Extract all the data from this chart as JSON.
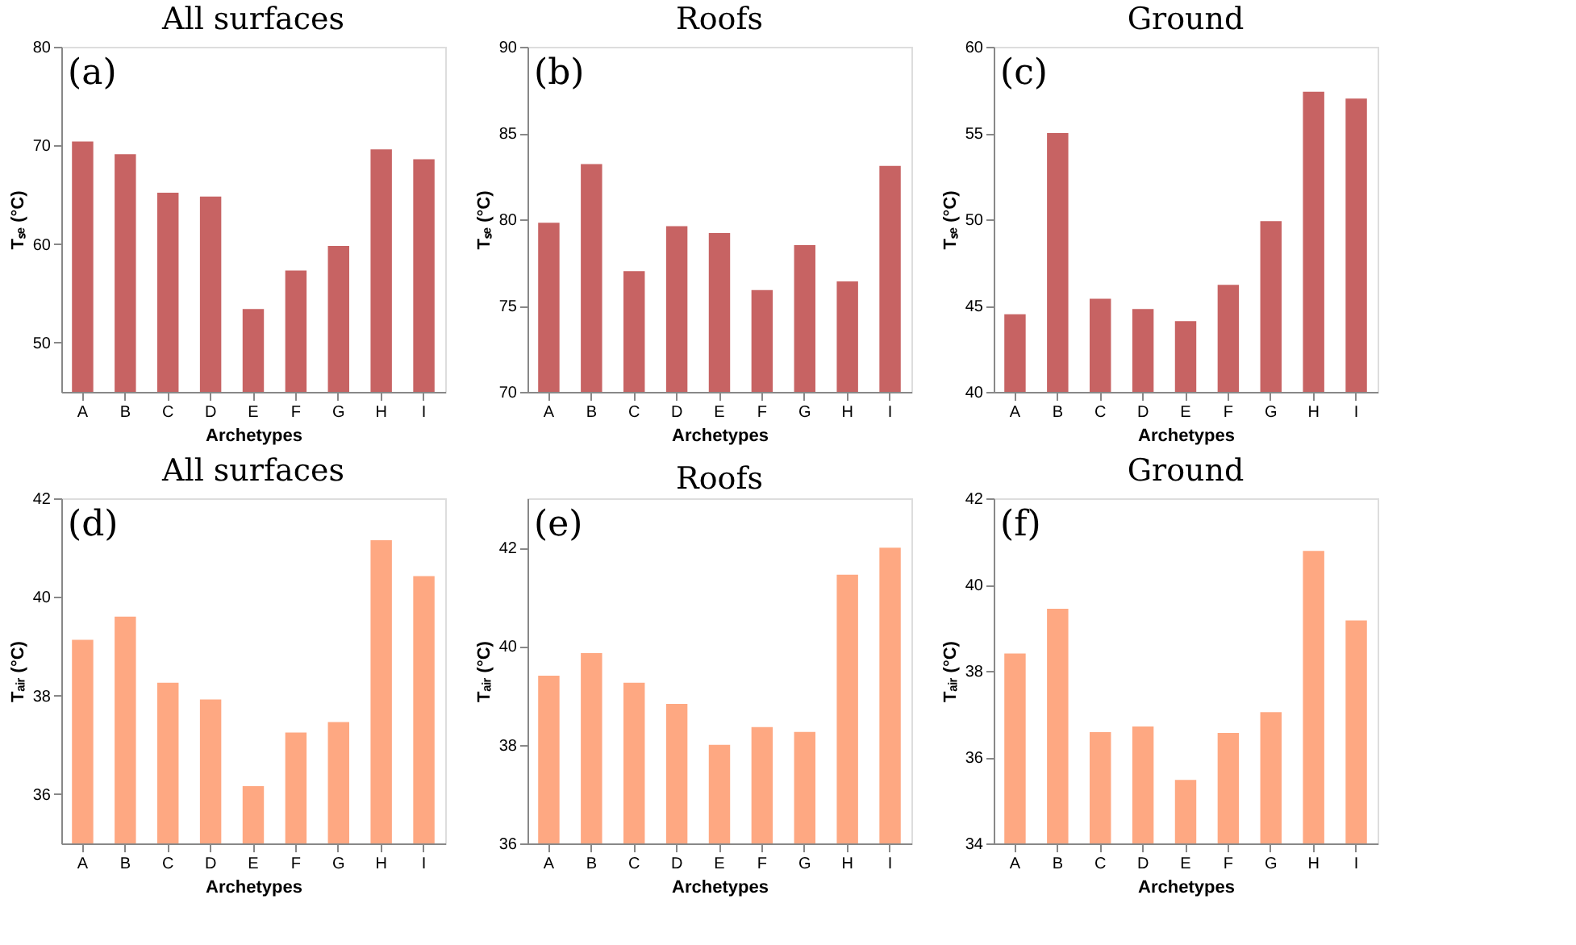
{
  "chart_data": [
    {
      "type": "bar",
      "title": "All surfaces",
      "xlabel": "Archetypes",
      "ylabel": "Tₛₑ (°C)",
      "annotations": [
        "(a)"
      ],
      "categories": [
        "A",
        "B",
        "C",
        "D",
        "E",
        "F",
        "G",
        "H",
        "I"
      ],
      "values": [
        70.4,
        69.1,
        65.2,
        64.8,
        53.4,
        57.3,
        59.8,
        69.6,
        68.6
      ],
      "color": "#c76363",
      "ylim": [
        45,
        80
      ],
      "yticks": [
        50,
        60,
        70,
        80
      ],
      "grid": false
    },
    {
      "type": "bar",
      "title": "Roofs",
      "xlabel": "Archetypes",
      "ylabel": "Tₛₑ (°C)",
      "annotations": [
        "(b)"
      ],
      "categories": [
        "A",
        "B",
        "C",
        "D",
        "E",
        "F",
        "G",
        "H",
        "I"
      ],
      "values": [
        79.8,
        83.2,
        77.0,
        79.6,
        79.2,
        75.9,
        78.5,
        76.4,
        83.1
      ],
      "color": "#c76363",
      "ylim": [
        70,
        90
      ],
      "yticks": [
        70,
        75,
        80,
        85,
        90
      ],
      "grid": false
    },
    {
      "type": "bar",
      "title": "Ground",
      "xlabel": "Archetypes",
      "ylabel": "Tₛₑ (°C)",
      "annotations": [
        "(c)"
      ],
      "categories": [
        "A",
        "B",
        "C",
        "D",
        "E",
        "F",
        "G",
        "H",
        "I"
      ],
      "values": [
        44.5,
        55.0,
        45.4,
        44.8,
        44.1,
        46.2,
        49.9,
        57.4,
        57.0
      ],
      "color": "#c76363",
      "ylim": [
        40,
        60
      ],
      "yticks": [
        40,
        45,
        50,
        55,
        60
      ],
      "grid": false
    },
    {
      "type": "bar",
      "title": "All surfaces",
      "xlabel": "Archetypes",
      "ylabel": "Tₐᵢᵣ (°C)",
      "annotations": [
        "(d)"
      ],
      "categories": [
        "A",
        "B",
        "C",
        "D",
        "E",
        "F",
        "G",
        "H",
        "I"
      ],
      "values": [
        39.13,
        39.6,
        38.26,
        37.92,
        36.16,
        37.25,
        37.46,
        41.15,
        40.42
      ],
      "color": "#fea882",
      "ylim": [
        35,
        42
      ],
      "yticks": [
        36,
        38,
        40,
        42
      ],
      "grid": false
    },
    {
      "type": "bar",
      "title": "Roofs",
      "xlabel": "Archetypes",
      "ylabel": "Tₐᵢᵣ (°C)",
      "annotations": [
        "(e)"
      ],
      "categories": [
        "A",
        "B",
        "C",
        "D",
        "E",
        "F",
        "G",
        "H",
        "I"
      ],
      "values": [
        39.4,
        39.86,
        39.26,
        38.83,
        38.0,
        38.36,
        38.26,
        41.45,
        42.0
      ],
      "color": "#fea882",
      "ylim": [
        36,
        43
      ],
      "yticks": [
        36,
        38,
        40,
        42
      ],
      "grid": false
    },
    {
      "type": "bar",
      "title": "Ground",
      "xlabel": "Archetypes",
      "ylabel": "Tₐᵢᵣ (°C)",
      "annotations": [
        "(f)"
      ],
      "categories": [
        "A",
        "B",
        "C",
        "D",
        "E",
        "F",
        "G",
        "H",
        "I"
      ],
      "values": [
        38.4,
        39.44,
        36.58,
        36.71,
        35.47,
        36.56,
        37.04,
        40.78,
        39.17
      ],
      "color": "#fea882",
      "ylim": [
        34,
        42
      ],
      "yticks": [
        34,
        36,
        38,
        40,
        42
      ],
      "grid": false
    }
  ]
}
